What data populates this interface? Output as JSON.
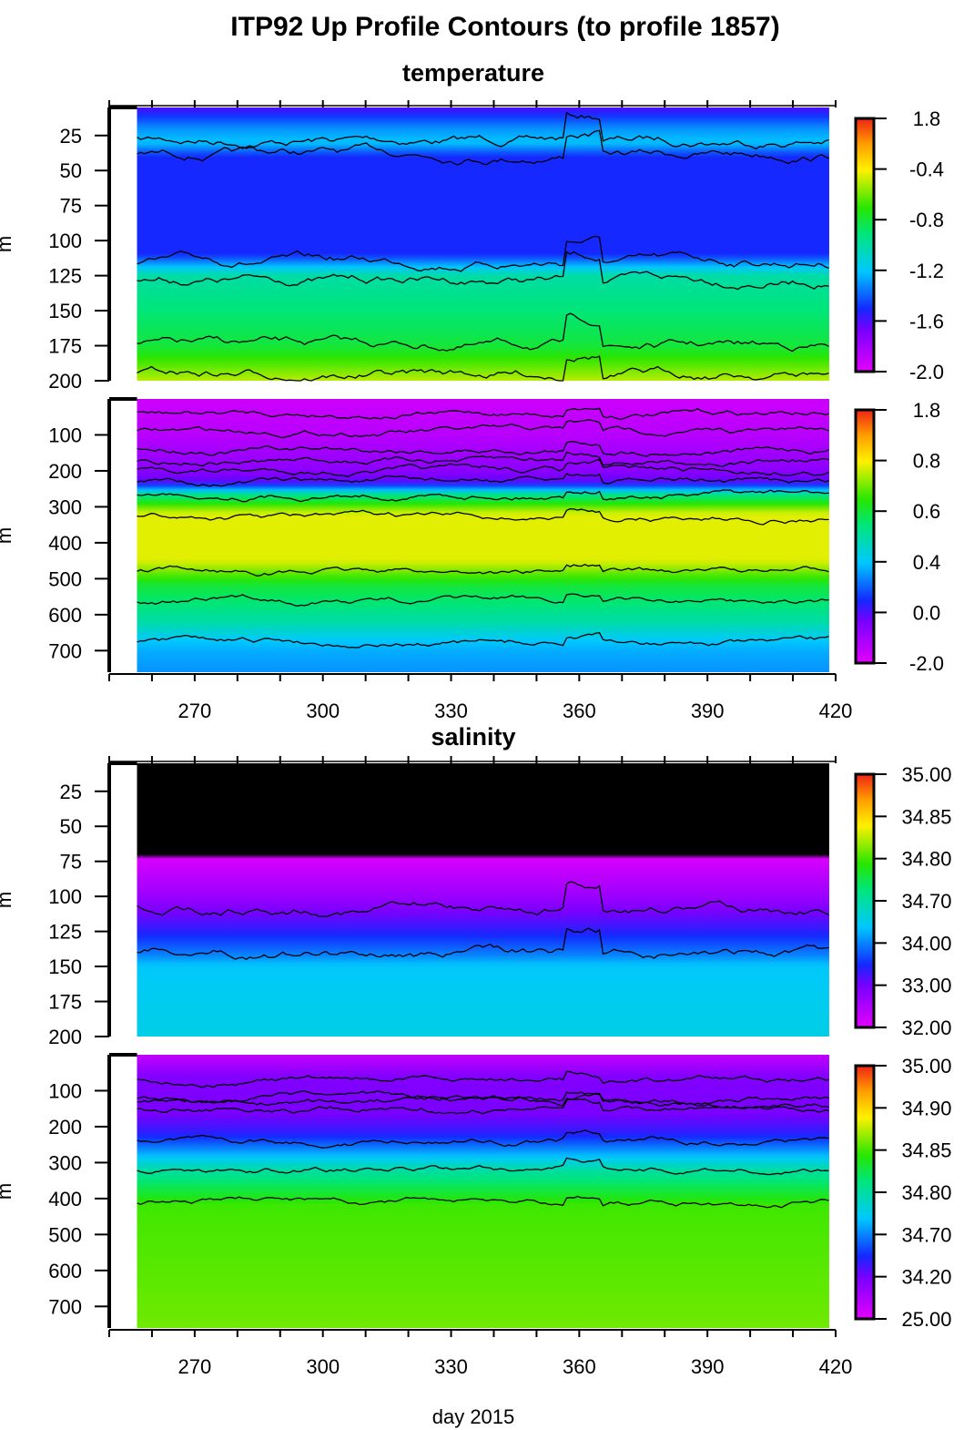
{
  "title": "ITP92 Up Profile Contours (to profile 1857)",
  "xlabel": "day 2015",
  "ylabel": "m",
  "chart_data": [
    {
      "type": "heatmap",
      "section": "temperature",
      "xlim": [
        250,
        420
      ],
      "ylim": [
        5,
        200
      ],
      "y_reversed": true,
      "xticks": [
        270,
        300,
        330,
        360,
        390,
        420
      ],
      "yticks": [
        25,
        50,
        75,
        100,
        125,
        150,
        175,
        200
      ],
      "data_x_range": [
        256.5,
        418.5
      ],
      "colorbar_ticks": [
        "1.8",
        "-0.4",
        "-0.8",
        "-1.2",
        "-1.6",
        "-2.0"
      ],
      "colorbar_values": [
        1.8,
        -0.4,
        -0.8,
        -1.2,
        -1.6,
        -2.0
      ],
      "mean_profile": {
        "depth": [
          5,
          20,
          30,
          40,
          110,
          125,
          175,
          200
        ],
        "value": [
          -1.6,
          -1.3,
          -1.2,
          -1.5,
          -1.5,
          -1.0,
          -0.8,
          -0.5
        ]
      }
    },
    {
      "type": "heatmap",
      "section": "",
      "xlim": [
        250,
        420
      ],
      "ylim": [
        0,
        760
      ],
      "y_reversed": true,
      "xticks": [
        270,
        300,
        330,
        360,
        390,
        420
      ],
      "yticks": [
        100,
        200,
        300,
        400,
        500,
        600,
        700
      ],
      "data_x_range": [
        256.5,
        418.5
      ],
      "colorbar_ticks": [
        "1.8",
        "0.8",
        "0.6",
        "0.4",
        "0.0",
        "-2.0"
      ],
      "colorbar_values": [
        1.8,
        0.8,
        0.6,
        0.4,
        0.0,
        -2.0
      ],
      "mean_profile": {
        "depth": [
          0,
          100,
          200,
          260,
          320,
          450,
          520,
          620,
          700,
          760
        ],
        "value": [
          -1.6,
          -1.3,
          -0.6,
          0.5,
          0.78,
          0.78,
          0.6,
          0.5,
          0.35,
          0.3
        ]
      }
    },
    {
      "type": "heatmap",
      "section": "salinity",
      "xlim": [
        250,
        420
      ],
      "ylim": [
        5,
        200
      ],
      "y_reversed": true,
      "xticks": [
        270,
        300,
        330,
        360,
        390,
        420
      ],
      "yticks": [
        25,
        50,
        75,
        100,
        125,
        150,
        175,
        200
      ],
      "data_x_range": [
        256.5,
        418.5
      ],
      "colorbar_ticks": [
        "35.00",
        "34.85",
        "34.80",
        "34.70",
        "34.00",
        "33.00",
        "32.00"
      ],
      "colorbar_values": [
        35.0,
        34.85,
        34.8,
        34.7,
        34.0,
        33.0,
        32.0
      ],
      "below_range_color": "#000000",
      "mean_profile": {
        "depth": [
          5,
          68,
          72,
          100,
          125,
          150,
          200
        ],
        "value": [
          30,
          30,
          32.1,
          32.7,
          33.4,
          34.3,
          34.4
        ]
      }
    },
    {
      "type": "heatmap",
      "section": "",
      "xlim": [
        250,
        420
      ],
      "ylim": [
        0,
        760
      ],
      "y_reversed": true,
      "xticks": [
        270,
        300,
        330,
        360,
        390,
        420
      ],
      "yticks": [
        100,
        200,
        300,
        400,
        500,
        600,
        700
      ],
      "data_x_range": [
        256.5,
        418.5
      ],
      "colorbar_ticks": [
        "35.00",
        "34.90",
        "34.85",
        "34.80",
        "34.70",
        "34.20",
        "25.00"
      ],
      "colorbar_values": [
        35.0,
        34.9,
        34.85,
        34.8,
        34.7,
        34.2,
        25.0
      ],
      "mean_profile": {
        "depth": [
          0,
          60,
          150,
          220,
          260,
          320,
          420,
          760
        ],
        "value": [
          28,
          33.5,
          34.15,
          34.4,
          34.7,
          34.8,
          34.85,
          34.86
        ]
      }
    }
  ]
}
